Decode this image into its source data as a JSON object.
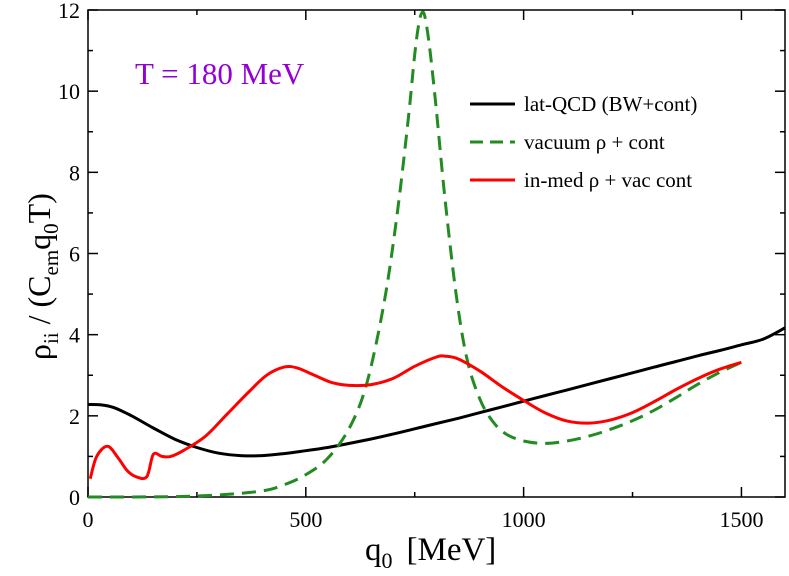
{
  "chart_data": {
    "type": "line",
    "title": "",
    "xlabel": "q0 [MeV]",
    "ylabel": "ρii / (Cem q0 T)",
    "xlabel_parts": {
      "main": "q",
      "sub": "0",
      "unit": "[MeV]"
    },
    "ylabel_parts": {
      "rho": "ρ",
      "sub_ii": "ii",
      "mid": "/ (C",
      "sub_em": "em",
      "q": "q",
      "sub_0": "0",
      "end": "T)"
    },
    "xlim": [
      0,
      1600
    ],
    "ylim": [
      0,
      12
    ],
    "x_ticks": [
      0,
      500,
      1000,
      1500
    ],
    "y_ticks": [
      0,
      2,
      4,
      6,
      8,
      10,
      12
    ],
    "annotation": {
      "text": "T = 180 MeV",
      "color": "#9400d3"
    },
    "legend_position": "upper-right",
    "series": [
      {
        "name": "lat-QCD (BW+cont)",
        "color": "#000000",
        "style": "solid",
        "points": [
          [
            0,
            2.28
          ],
          [
            30,
            2.27
          ],
          [
            60,
            2.2
          ],
          [
            100,
            2.0
          ],
          [
            150,
            1.7
          ],
          [
            200,
            1.42
          ],
          [
            250,
            1.22
          ],
          [
            300,
            1.08
          ],
          [
            350,
            1.02
          ],
          [
            400,
            1.02
          ],
          [
            450,
            1.07
          ],
          [
            500,
            1.14
          ],
          [
            550,
            1.22
          ],
          [
            600,
            1.32
          ],
          [
            650,
            1.43
          ],
          [
            700,
            1.55
          ],
          [
            750,
            1.68
          ],
          [
            800,
            1.81
          ],
          [
            850,
            1.94
          ],
          [
            900,
            2.08
          ],
          [
            950,
            2.22
          ],
          [
            1000,
            2.36
          ],
          [
            1050,
            2.5
          ],
          [
            1100,
            2.64
          ],
          [
            1150,
            2.78
          ],
          [
            1200,
            2.92
          ],
          [
            1250,
            3.06
          ],
          [
            1300,
            3.2
          ],
          [
            1350,
            3.34
          ],
          [
            1400,
            3.48
          ],
          [
            1450,
            3.61
          ],
          [
            1500,
            3.75
          ],
          [
            1550,
            3.89
          ],
          [
            1600,
            4.17
          ]
        ]
      },
      {
        "name": "vacuum ρ + cont",
        "color": "#228b22",
        "style": "dashed",
        "points": [
          [
            0,
            0
          ],
          [
            100,
            0.0
          ],
          [
            200,
            0.01
          ],
          [
            300,
            0.05
          ],
          [
            400,
            0.15
          ],
          [
            450,
            0.3
          ],
          [
            500,
            0.55
          ],
          [
            550,
            0.95
          ],
          [
            600,
            1.7
          ],
          [
            640,
            2.8
          ],
          [
            680,
            4.8
          ],
          [
            710,
            7.0
          ],
          [
            735,
            9.3
          ],
          [
            750,
            10.9
          ],
          [
            760,
            11.7
          ],
          [
            768,
            11.95
          ],
          [
            775,
            11.75
          ],
          [
            785,
            11.0
          ],
          [
            800,
            9.5
          ],
          [
            820,
            7.3
          ],
          [
            845,
            5.0
          ],
          [
            870,
            3.4
          ],
          [
            900,
            2.4
          ],
          [
            930,
            1.85
          ],
          [
            960,
            1.55
          ],
          [
            1000,
            1.38
          ],
          [
            1050,
            1.32
          ],
          [
            1100,
            1.38
          ],
          [
            1150,
            1.5
          ],
          [
            1200,
            1.67
          ],
          [
            1250,
            1.88
          ],
          [
            1300,
            2.14
          ],
          [
            1350,
            2.45
          ],
          [
            1400,
            2.78
          ],
          [
            1450,
            3.07
          ],
          [
            1500,
            3.32
          ]
        ]
      },
      {
        "name": "in-med ρ + vac cont",
        "color": "#ff0000",
        "style": "solid",
        "points": [
          [
            5,
            0.45
          ],
          [
            20,
            1.0
          ],
          [
            45,
            1.25
          ],
          [
            70,
            0.95
          ],
          [
            90,
            0.65
          ],
          [
            110,
            0.5
          ],
          [
            135,
            0.5
          ],
          [
            150,
            1.05
          ],
          [
            170,
            1.0
          ],
          [
            190,
            1.0
          ],
          [
            220,
            1.15
          ],
          [
            270,
            1.5
          ],
          [
            320,
            2.05
          ],
          [
            370,
            2.6
          ],
          [
            410,
            3.0
          ],
          [
            450,
            3.2
          ],
          [
            480,
            3.18
          ],
          [
            520,
            3.0
          ],
          [
            560,
            2.82
          ],
          [
            600,
            2.75
          ],
          [
            650,
            2.77
          ],
          [
            700,
            2.92
          ],
          [
            750,
            3.22
          ],
          [
            800,
            3.45
          ],
          [
            820,
            3.47
          ],
          [
            850,
            3.4
          ],
          [
            900,
            3.1
          ],
          [
            950,
            2.72
          ],
          [
            1000,
            2.38
          ],
          [
            1050,
            2.07
          ],
          [
            1100,
            1.87
          ],
          [
            1150,
            1.82
          ],
          [
            1200,
            1.9
          ],
          [
            1250,
            2.08
          ],
          [
            1300,
            2.35
          ],
          [
            1350,
            2.65
          ],
          [
            1400,
            2.92
          ],
          [
            1450,
            3.15
          ],
          [
            1500,
            3.32
          ]
        ]
      }
    ]
  }
}
